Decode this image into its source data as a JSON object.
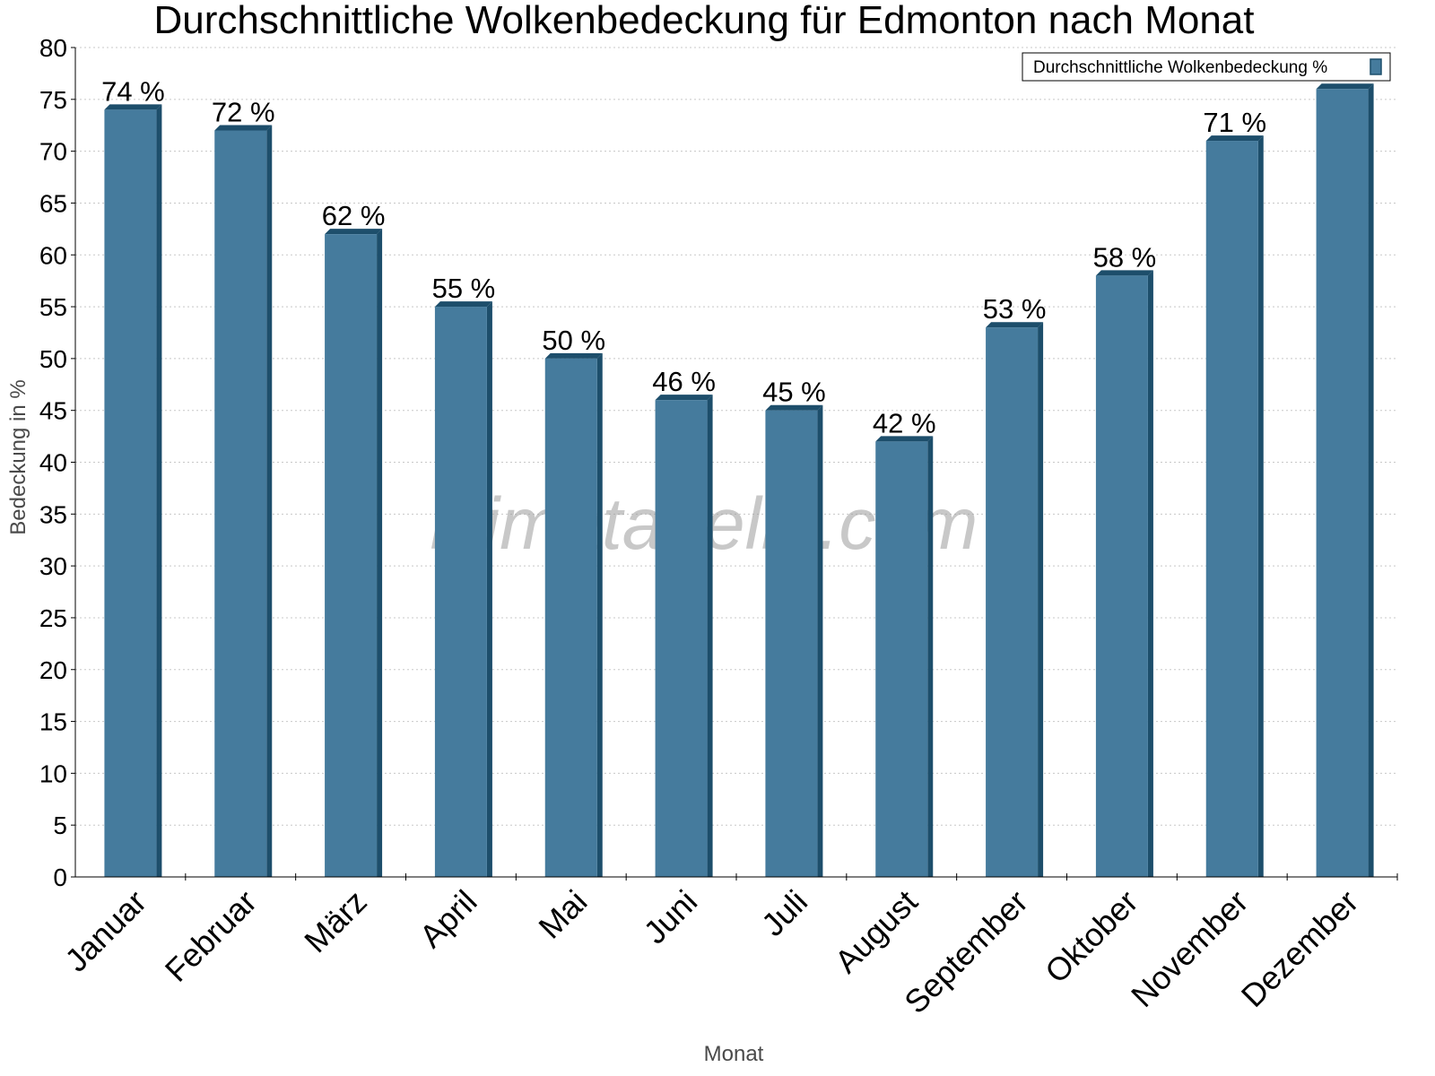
{
  "chart_data": {
    "type": "bar",
    "title": "Durchschnittliche Wolkenbedeckung für Edmonton nach Monat",
    "xlabel": "Monat",
    "ylabel": "Bedeckung in %",
    "ylim": [
      0,
      80
    ],
    "ytick_step": 5,
    "grid": true,
    "legend_position": "top-right",
    "categories": [
      "Januar",
      "Februar",
      "März",
      "April",
      "Mai",
      "Juni",
      "Juli",
      "August",
      "September",
      "Oktober",
      "November",
      "Dezember"
    ],
    "series": [
      {
        "name": "Durchschnittliche Wolkenbedeckung %",
        "values": [
          74,
          72,
          62,
          55,
          50,
          46,
          45,
          42,
          53,
          58,
          71,
          76
        ],
        "data_labels": [
          "74 %",
          "72 %",
          "62 %",
          "55 %",
          "50 %",
          "46 %",
          "45 %",
          "42 %",
          "53 %",
          "58 %",
          "71 %",
          ""
        ],
        "color": "#457b9d",
        "side_color": "#1d4e6b"
      }
    ]
  },
  "watermark": "klimatabelle.com"
}
